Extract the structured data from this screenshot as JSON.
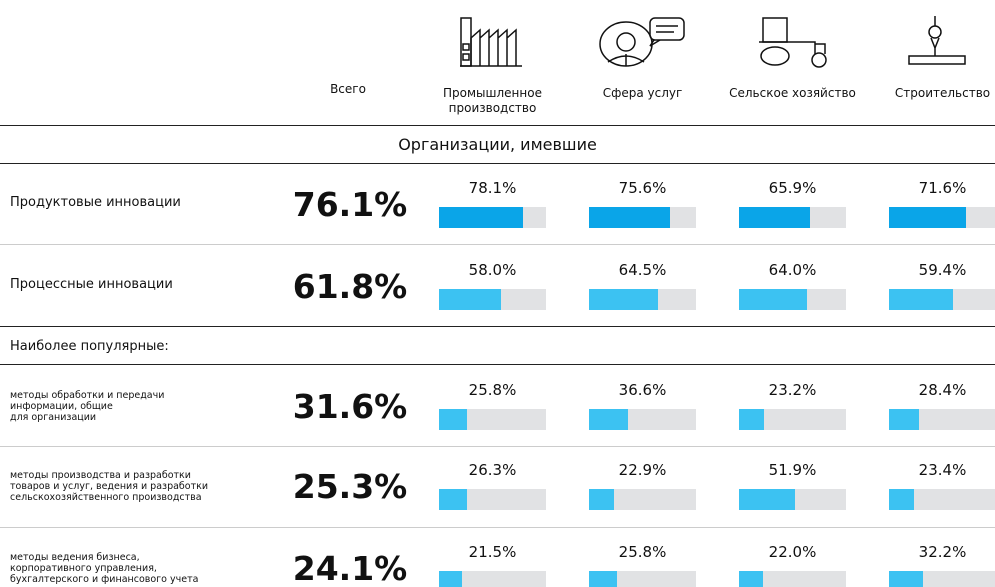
{
  "columns": {
    "total": "Всего",
    "sectors": [
      "Промышленное производство",
      "Сфера услуг",
      "Сельское хозяйство",
      "Строительство"
    ]
  },
  "section_title": "Организации, имевшие",
  "subheading": "Наиболее популярные:",
  "xlim": [
    0,
    100
  ],
  "rows": [
    {
      "label": "Продуктовые инновации",
      "total": 76.1,
      "total_label": "76.1%",
      "color": "#0aa5e8",
      "values": [
        78.1,
        75.6,
        65.9,
        71.6
      ],
      "value_labels": [
        "78.1%",
        "75.6%",
        "65.9%",
        "71.6%"
      ]
    },
    {
      "label": "Процессные инновации",
      "total": 61.8,
      "total_label": "61.8%",
      "color": "#3cc2f2",
      "values": [
        58.0,
        64.5,
        64.0,
        59.4
      ],
      "value_labels": [
        "58.0%",
        "64.5%",
        "64.0%",
        "59.4%"
      ]
    },
    {
      "label": "методы обработки и передачи\nинформации, общие\nдля организации",
      "total": 31.6,
      "total_label": "31.6%",
      "color": "#3cc2f2",
      "values": [
        25.8,
        36.6,
        23.2,
        28.4
      ],
      "value_labels": [
        "25.8%",
        "36.6%",
        "23.2%",
        "28.4%"
      ]
    },
    {
      "label": "методы производства и разработки\nтоваров и услуг, ведения и разработки\nсельскохозяйственного производства",
      "total": 25.3,
      "total_label": "25.3%",
      "color": "#3cc2f2",
      "values": [
        26.3,
        22.9,
        51.9,
        23.4
      ],
      "value_labels": [
        "26.3%",
        "22.9%",
        "51.9%",
        "23.4%"
      ]
    },
    {
      "label": "методы ведения бизнеса,\nкорпоративного управления,\nбухгалтерского и финансового учета",
      "total": 24.1,
      "total_label": "24.1%",
      "color": "#3cc2f2",
      "values": [
        21.5,
        25.8,
        22.0,
        32.2
      ],
      "value_labels": [
        "21.5%",
        "25.8%",
        "22.0%",
        "32.2%"
      ]
    }
  ]
}
